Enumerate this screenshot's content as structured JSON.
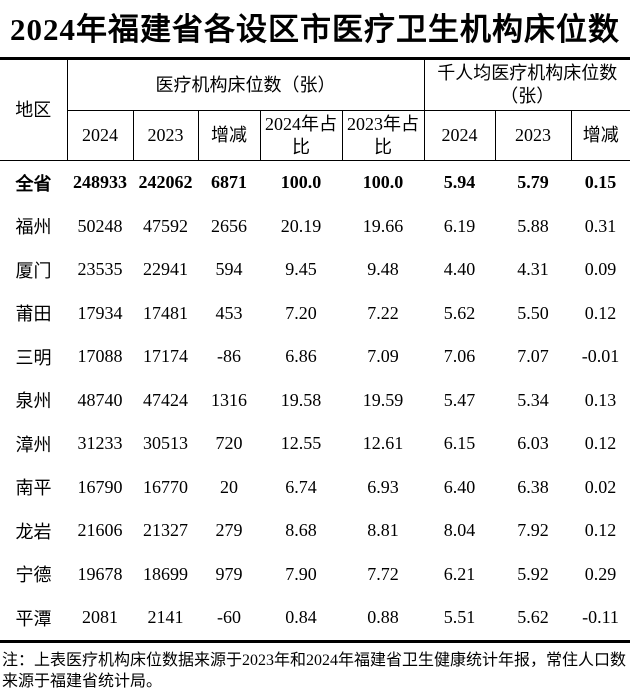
{
  "title": "2024年福建省各设区市医疗卫生机构床位数",
  "table": {
    "region_header": "地区",
    "groups": [
      {
        "label": "医疗机构床位数（张）",
        "columns": [
          "2024",
          "2023",
          "增减",
          "2024年占比",
          "2023年占比"
        ]
      },
      {
        "label": "千人均医疗机构床位数（张）",
        "columns": [
          "2024",
          "2023",
          "增减"
        ]
      }
    ],
    "rows": [
      {
        "region": "全省",
        "bold": true,
        "values": [
          "248933",
          "242062",
          "6871",
          "100.0",
          "100.0",
          "5.94",
          "5.79",
          "0.15"
        ]
      },
      {
        "region": "福州",
        "bold": false,
        "values": [
          "50248",
          "47592",
          "2656",
          "20.19",
          "19.66",
          "6.19",
          "5.88",
          "0.31"
        ]
      },
      {
        "region": "厦门",
        "bold": false,
        "values": [
          "23535",
          "22941",
          "594",
          "9.45",
          "9.48",
          "4.40",
          "4.31",
          "0.09"
        ]
      },
      {
        "region": "莆田",
        "bold": false,
        "values": [
          "17934",
          "17481",
          "453",
          "7.20",
          "7.22",
          "5.62",
          "5.50",
          "0.12"
        ]
      },
      {
        "region": "三明",
        "bold": false,
        "values": [
          "17088",
          "17174",
          "-86",
          "6.86",
          "7.09",
          "7.06",
          "7.07",
          "-0.01"
        ]
      },
      {
        "region": "泉州",
        "bold": false,
        "values": [
          "48740",
          "47424",
          "1316",
          "19.58",
          "19.59",
          "5.47",
          "5.34",
          "0.13"
        ]
      },
      {
        "region": "漳州",
        "bold": false,
        "values": [
          "31233",
          "30513",
          "720",
          "12.55",
          "12.61",
          "6.15",
          "6.03",
          "0.12"
        ]
      },
      {
        "region": "南平",
        "bold": false,
        "values": [
          "16790",
          "16770",
          "20",
          "6.74",
          "6.93",
          "6.40",
          "6.38",
          "0.02"
        ]
      },
      {
        "region": "龙岩",
        "bold": false,
        "values": [
          "21606",
          "21327",
          "279",
          "8.68",
          "8.81",
          "8.04",
          "7.92",
          "0.12"
        ]
      },
      {
        "region": "宁德",
        "bold": false,
        "values": [
          "19678",
          "18699",
          "979",
          "7.90",
          "7.72",
          "6.21",
          "5.92",
          "0.29"
        ]
      },
      {
        "region": "平潭",
        "bold": false,
        "values": [
          "2081",
          "2141",
          "-60",
          "0.84",
          "0.88",
          "5.51",
          "5.62",
          "-0.11"
        ]
      }
    ]
  },
  "note": "注：上表医疗机构床位数据来源于2023年和2024年福建省卫生健康统计年报，常住人口数来源于福建省统计局。",
  "colors": {
    "text": "#000000",
    "background": "#ffffff",
    "border": "#000000"
  }
}
